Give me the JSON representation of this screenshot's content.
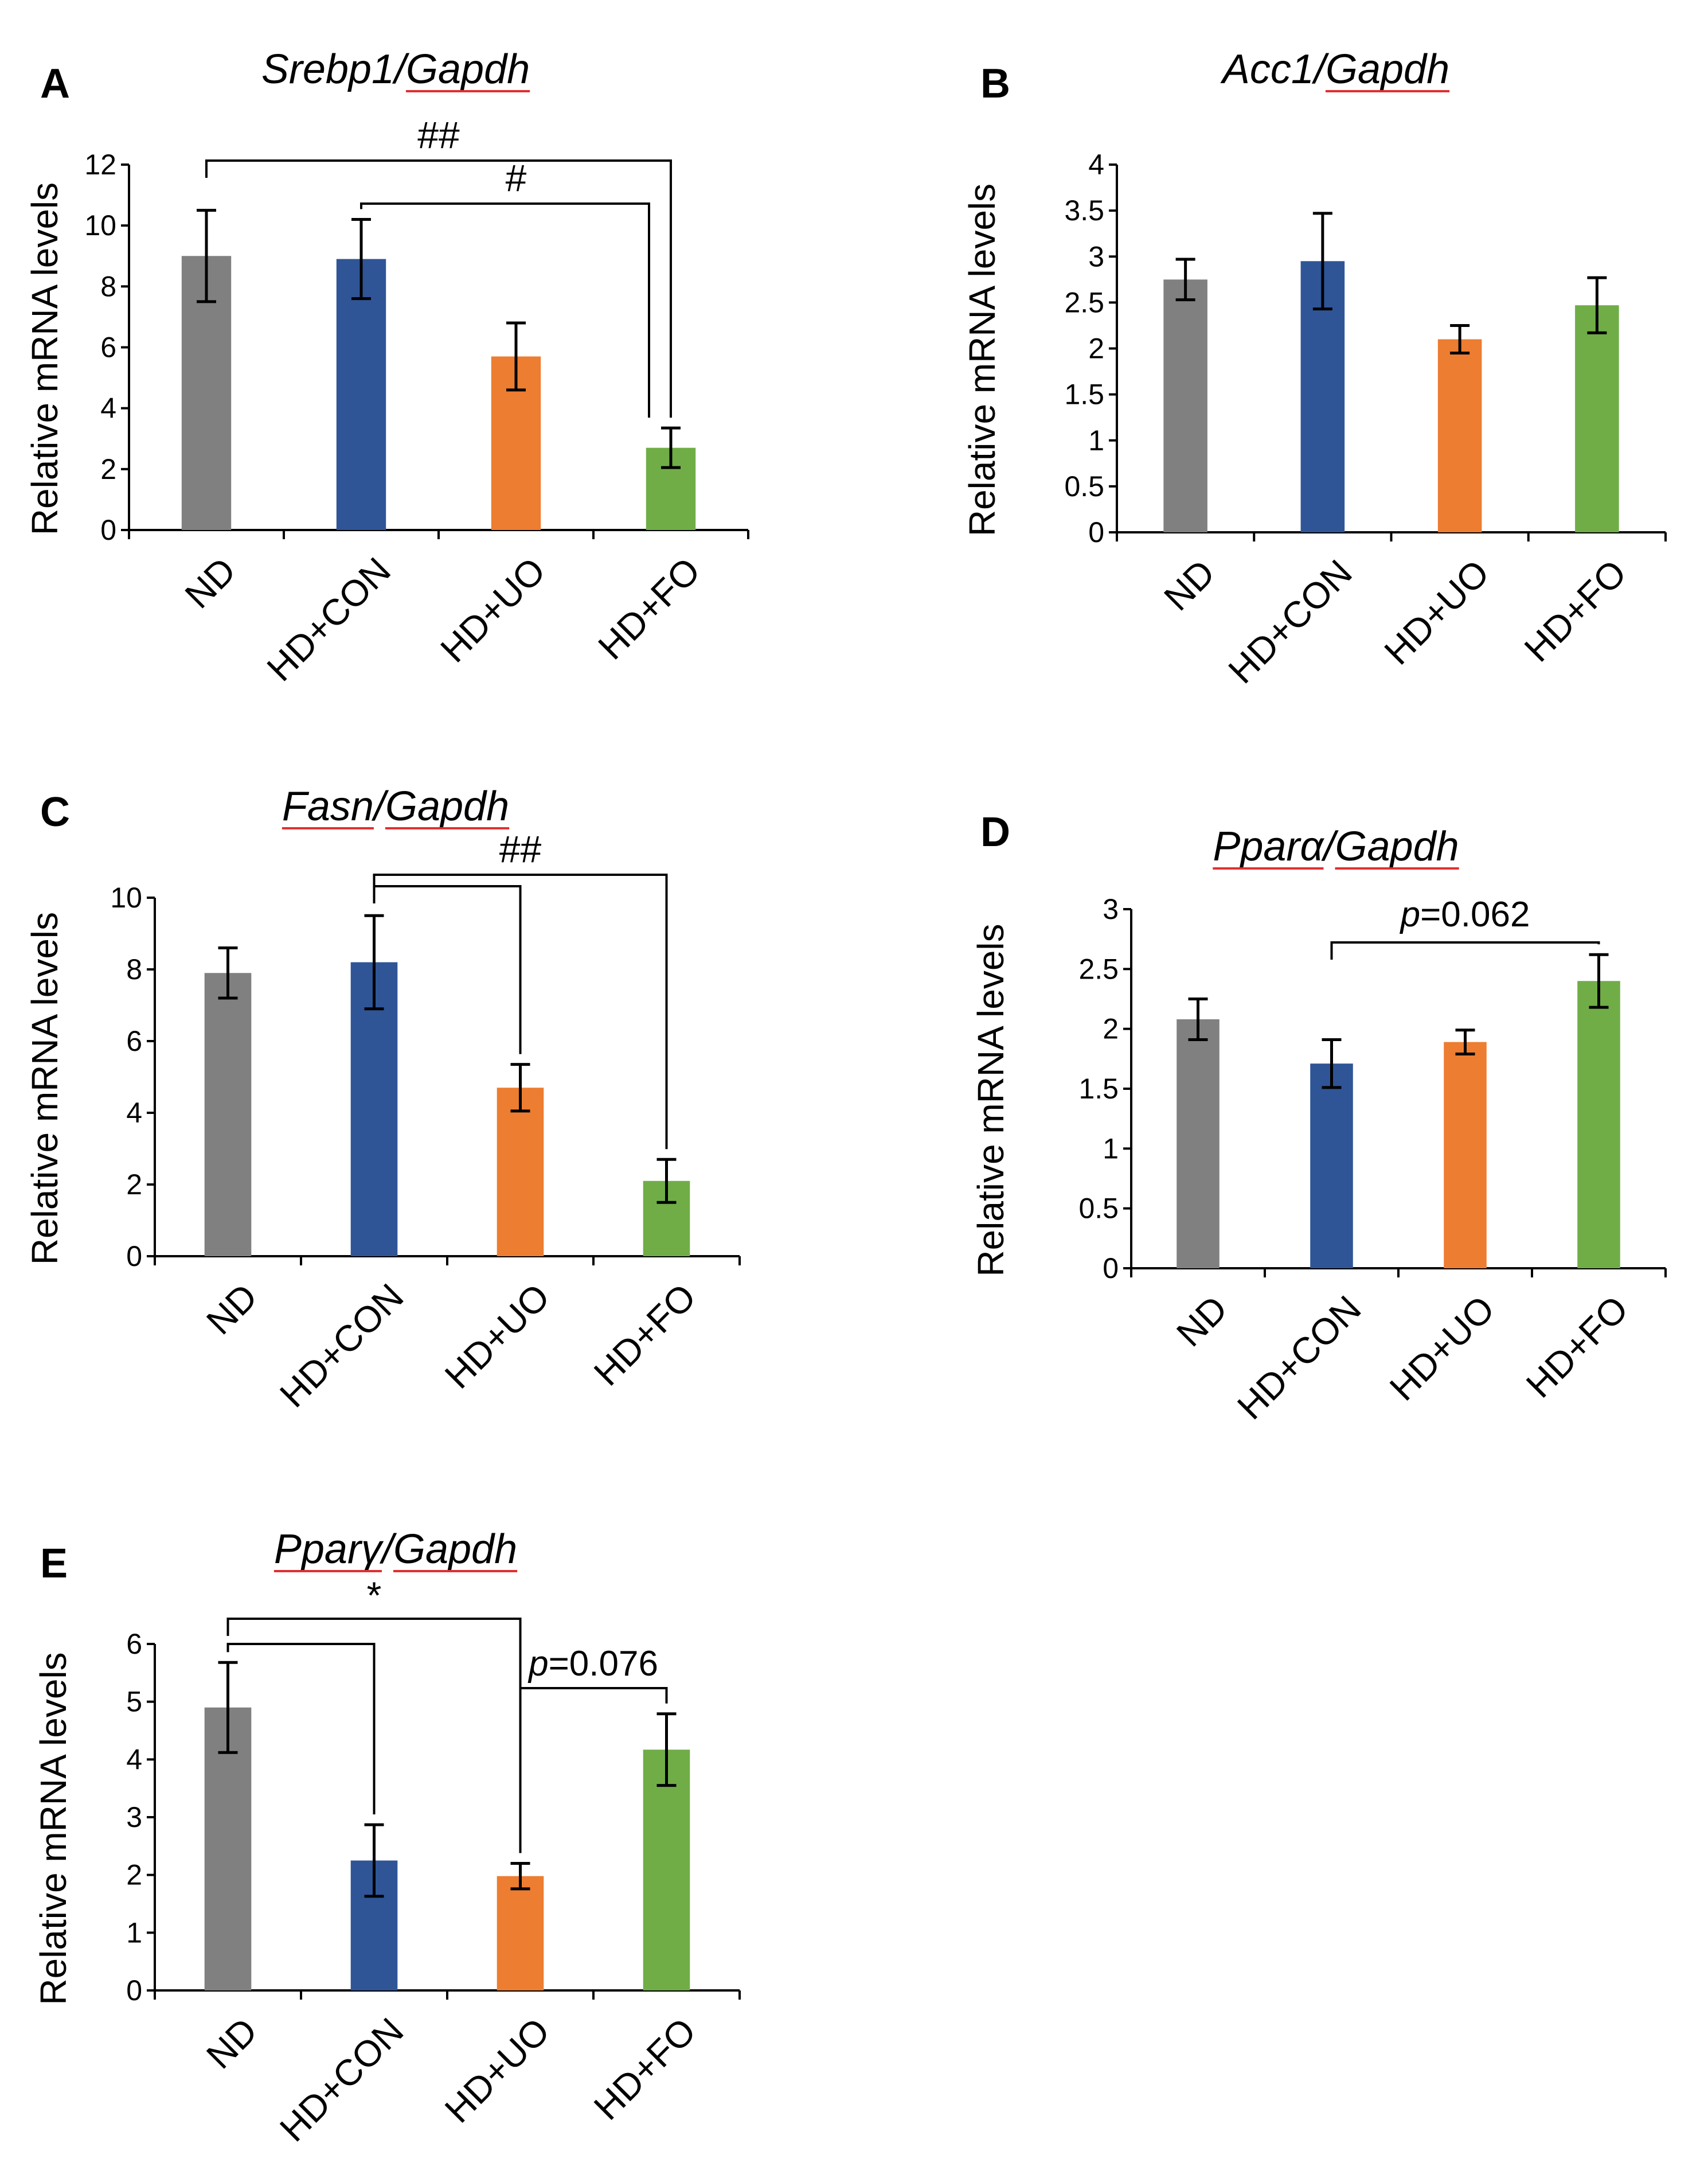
{
  "chart_data": [
    {
      "panel": "A",
      "type": "bar",
      "title": "Srebp1/Gapdh",
      "title_parts": [
        {
          "text": "Srebp1",
          "underline": false
        },
        {
          "text": "/",
          "underline": false
        },
        {
          "text": "Gapdh",
          "underline": true
        }
      ],
      "ylabel": "Relative mRNA levels",
      "categories": [
        "ND",
        "HD+CON",
        "HD+UO",
        "HD+FO"
      ],
      "values": [
        9.0,
        8.9,
        5.7,
        2.7
      ],
      "errors": [
        1.5,
        1.3,
        1.1,
        0.65
      ],
      "colors": [
        "#808080",
        "#2f5597",
        "#ed7d31",
        "#70ad47"
      ],
      "ylim": [
        0,
        12
      ],
      "yticks": [
        0,
        2,
        4,
        6,
        8,
        10,
        12
      ],
      "ytick_labels": [
        "0",
        "2",
        "4",
        "6",
        "8",
        "10",
        "12"
      ],
      "annotations": [
        {
          "from": 0,
          "to": 3,
          "label": "##",
          "label_style": "normal"
        },
        {
          "from": 1,
          "to": 3,
          "label": "#",
          "label_style": "normal"
        }
      ]
    },
    {
      "panel": "B",
      "type": "bar",
      "title": "Acc1/Gapdh",
      "title_parts": [
        {
          "text": "Acc1",
          "underline": false
        },
        {
          "text": "/",
          "underline": false
        },
        {
          "text": "Gapdh",
          "underline": true
        }
      ],
      "ylabel": "Relative mRNA levels",
      "categories": [
        "ND",
        "HD+CON",
        "HD+UO",
        "HD+FO"
      ],
      "values": [
        2.75,
        2.95,
        2.1,
        2.47
      ],
      "errors": [
        0.22,
        0.52,
        0.15,
        0.3
      ],
      "colors": [
        "#808080",
        "#2f5597",
        "#ed7d31",
        "#70ad47"
      ],
      "ylim": [
        0,
        4
      ],
      "yticks": [
        0,
        0.5,
        1,
        1.5,
        2,
        2.5,
        3,
        3.5,
        4
      ],
      "ytick_labels": [
        "0",
        "0.5",
        "1",
        "1.5",
        "2",
        "2.5",
        "3",
        "3.5",
        "4"
      ],
      "annotations": []
    },
    {
      "panel": "C",
      "type": "bar",
      "title": "Fasn/Gapdh",
      "title_parts": [
        {
          "text": "Fasn",
          "underline": true
        },
        {
          "text": "/",
          "underline": false
        },
        {
          "text": "Gapdh",
          "underline": true
        }
      ],
      "ylabel": "Relative mRNA levels",
      "categories": [
        "ND",
        "HD+CON",
        "HD+UO",
        "HD+FO"
      ],
      "values": [
        7.9,
        8.2,
        4.7,
        2.1
      ],
      "errors": [
        0.7,
        1.3,
        0.65,
        0.6
      ],
      "colors": [
        "#808080",
        "#2f5597",
        "#ed7d31",
        "#70ad47"
      ],
      "ylim": [
        0,
        10
      ],
      "yticks": [
        0,
        2,
        4,
        6,
        8,
        10
      ],
      "ytick_labels": [
        "0",
        "2",
        "4",
        "6",
        "8",
        "10"
      ],
      "annotations": [
        {
          "from": 1,
          "to": 2,
          "label": "",
          "label_style": "normal"
        },
        {
          "from": 1,
          "to": 3,
          "label": "##",
          "label_style": "normal"
        }
      ]
    },
    {
      "panel": "D",
      "type": "bar",
      "title": "Pparα/Gapdh",
      "title_parts": [
        {
          "text": "Pparα",
          "underline": true
        },
        {
          "text": "/",
          "underline": false
        },
        {
          "text": "Gapdh",
          "underline": true
        }
      ],
      "ylabel": "Relative mRNA levels",
      "categories": [
        "ND",
        "HD+CON",
        "HD+UO",
        "HD+FO"
      ],
      "values": [
        2.08,
        1.71,
        1.89,
        2.4
      ],
      "errors": [
        0.17,
        0.2,
        0.1,
        0.22
      ],
      "colors": [
        "#808080",
        "#2f5597",
        "#ed7d31",
        "#70ad47"
      ],
      "ylim": [
        0,
        3
      ],
      "yticks": [
        0,
        0.5,
        1,
        1.5,
        2,
        2.5,
        3
      ],
      "ytick_labels": [
        "0",
        "0.5",
        "1",
        "1.5",
        "2",
        "2.5",
        "3"
      ],
      "annotations": [
        {
          "from": 1,
          "to": 3,
          "label": "p=0.062",
          "label_style": "pvalue"
        }
      ]
    },
    {
      "panel": "E",
      "type": "bar",
      "title": "Pparγ/Gapdh",
      "title_parts": [
        {
          "text": "Pparγ",
          "underline": true
        },
        {
          "text": "/",
          "underline": false
        },
        {
          "text": "Gapdh",
          "underline": true
        }
      ],
      "ylabel": "Relative mRNA levels",
      "categories": [
        "ND",
        "HD+CON",
        "HD+UO",
        "HD+FO"
      ],
      "values": [
        4.9,
        2.25,
        1.98,
        4.17
      ],
      "errors": [
        0.78,
        0.62,
        0.22,
        0.62
      ],
      "colors": [
        "#808080",
        "#2f5597",
        "#ed7d31",
        "#70ad47"
      ],
      "ylim": [
        0,
        6
      ],
      "yticks": [
        0,
        1,
        2,
        3,
        4,
        5,
        6
      ],
      "ytick_labels": [
        "0",
        "1",
        "2",
        "3",
        "4",
        "5",
        "6"
      ],
      "annotations": [
        {
          "from": 0,
          "to": 1,
          "label": "",
          "label_style": "normal"
        },
        {
          "from": 0,
          "to": 2,
          "label": "*",
          "label_style": "normal"
        },
        {
          "from": 2,
          "to": 3,
          "label": "p=0.076",
          "label_style": "pvalue"
        }
      ]
    }
  ]
}
